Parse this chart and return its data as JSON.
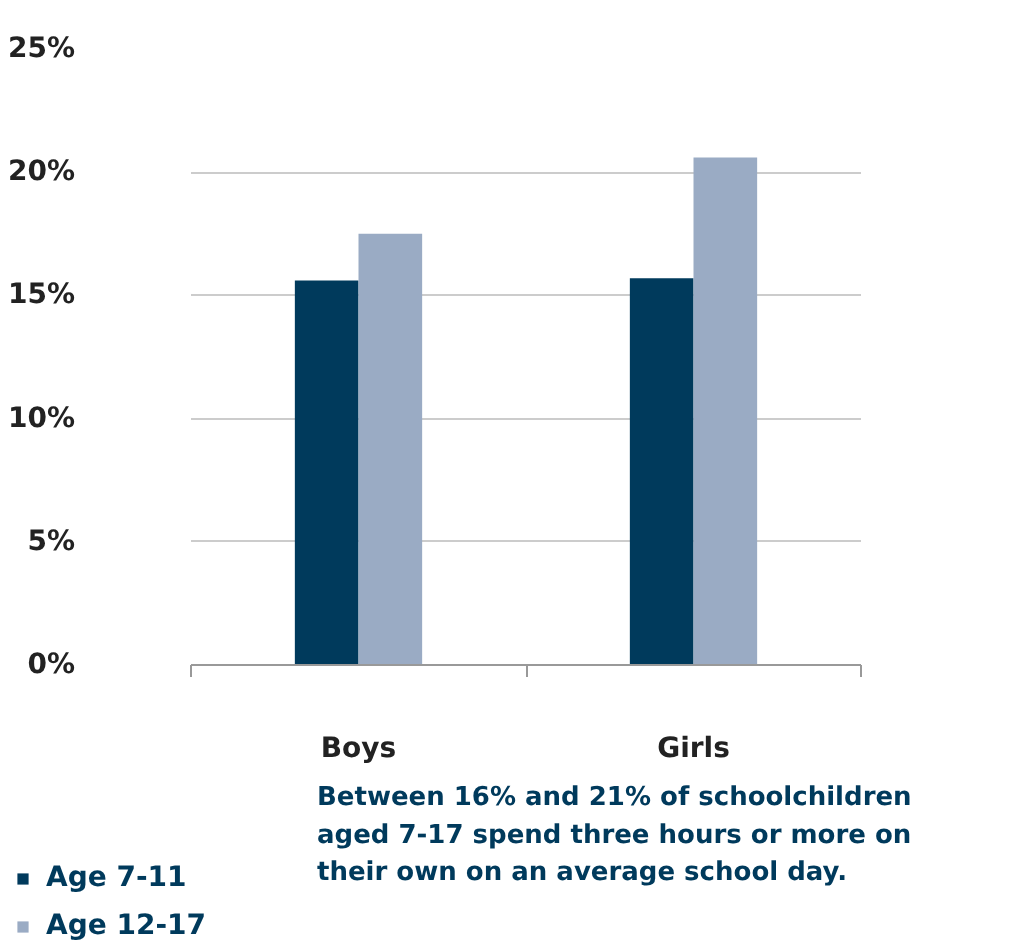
{
  "chart_data": {
    "type": "bar",
    "categories": [
      "Boys",
      "Girls"
    ],
    "series": [
      {
        "name": "Age 7-11",
        "color": "#003a5c",
        "values": [
          15.6,
          15.7
        ]
      },
      {
        "name": "Age 12-17",
        "color": "#9aabc4",
        "values": [
          17.5,
          20.6
        ]
      }
    ],
    "ylim": [
      0,
      25
    ],
    "yticks": [
      {
        "value": 0,
        "label": "0%"
      },
      {
        "value": 5,
        "label": "5%"
      },
      {
        "value": 10,
        "label": "10%"
      },
      {
        "value": 15,
        "label": "15%"
      },
      {
        "value": 20,
        "label": "20%"
      },
      {
        "value": 25,
        "label": "25%"
      }
    ],
    "grid": "y",
    "legend": "bottom left",
    "annotations": [
      "Between 16% and 21% of schoolchildren aged 7-17 spend three hours or more on their own on an average school day."
    ]
  }
}
